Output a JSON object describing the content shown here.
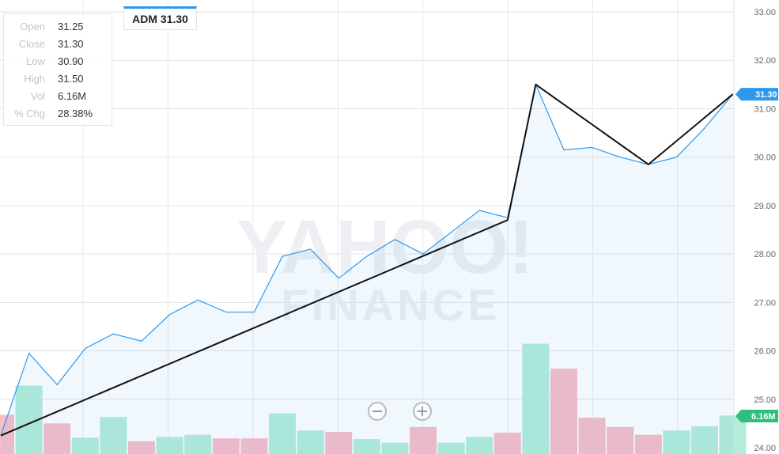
{
  "ticker": {
    "label": "ADM 31.30",
    "accent": "#2c99ef"
  },
  "ohlc": [
    {
      "label": "Open",
      "value": "31.25"
    },
    {
      "label": "Close",
      "value": "31.30"
    },
    {
      "label": "Low",
      "value": "30.90"
    },
    {
      "label": "High",
      "value": "31.50"
    },
    {
      "label": "Vol",
      "value": "6.16M"
    },
    {
      "label": "% Chg",
      "value": "28.38%"
    }
  ],
  "watermark": {
    "line1": "YAHOO!",
    "line2": "FINANCE"
  },
  "controls": {
    "zoom_out_icon": "minus-circle-icon",
    "zoom_in_icon": "plus-circle-icon"
  },
  "chart_data": {
    "type": "line",
    "y_axis": {
      "side": "right",
      "range": [
        24,
        33
      ],
      "ticks": [
        "33.00",
        "32.00",
        "31.00",
        "30.00",
        "29.00",
        "28.00",
        "27.00",
        "26.00",
        "25.00",
        "24.00"
      ]
    },
    "price_badge": {
      "text": "31.30",
      "value": 31.3,
      "color": "#2c99ef"
    },
    "volume_badge": {
      "text": "6.16M",
      "color": "#2ebf7e"
    },
    "grid": true,
    "price_color": "#2c99ef",
    "trendline_color": "#111111",
    "price": [
      24.25,
      25.95,
      25.3,
      26.05,
      26.35,
      26.2,
      26.75,
      27.05,
      26.8,
      26.8,
      27.95,
      28.1,
      27.5,
      27.95,
      28.3,
      28.0,
      28.45,
      28.9,
      28.75,
      31.5,
      30.15,
      30.2,
      30.0,
      29.85,
      30.0,
      30.6,
      31.3
    ],
    "volume": [
      {
        "value": 0.55,
        "dir": "down"
      },
      {
        "value": 0.96,
        "dir": "up"
      },
      {
        "value": 0.43,
        "dir": "down"
      },
      {
        "value": 0.23,
        "dir": "up"
      },
      {
        "value": 0.52,
        "dir": "up"
      },
      {
        "value": 0.18,
        "dir": "down"
      },
      {
        "value": 0.24,
        "dir": "up"
      },
      {
        "value": 0.27,
        "dir": "up"
      },
      {
        "value": 0.22,
        "dir": "down"
      },
      {
        "value": 0.22,
        "dir": "down"
      },
      {
        "value": 0.57,
        "dir": "up"
      },
      {
        "value": 0.33,
        "dir": "up"
      },
      {
        "value": 0.31,
        "dir": "down"
      },
      {
        "value": 0.21,
        "dir": "up"
      },
      {
        "value": 0.16,
        "dir": "up"
      },
      {
        "value": 0.38,
        "dir": "down"
      },
      {
        "value": 0.16,
        "dir": "up"
      },
      {
        "value": 0.24,
        "dir": "up"
      },
      {
        "value": 0.3,
        "dir": "down"
      },
      {
        "value": 1.55,
        "dir": "up"
      },
      {
        "value": 1.2,
        "dir": "down"
      },
      {
        "value": 0.51,
        "dir": "down"
      },
      {
        "value": 0.38,
        "dir": "down"
      },
      {
        "value": 0.27,
        "dir": "down"
      },
      {
        "value": 0.33,
        "dir": "up"
      },
      {
        "value": 0.39,
        "dir": "up"
      },
      {
        "value": 0.54,
        "dir": "up"
      }
    ],
    "trendline": [
      {
        "index": 0,
        "value": 24.25
      },
      {
        "index": 18,
        "value": 28.7
      },
      {
        "index": 19,
        "value": 31.5
      },
      {
        "index": 23,
        "value": 29.85
      },
      {
        "index": 26,
        "value": 31.3
      }
    ]
  }
}
